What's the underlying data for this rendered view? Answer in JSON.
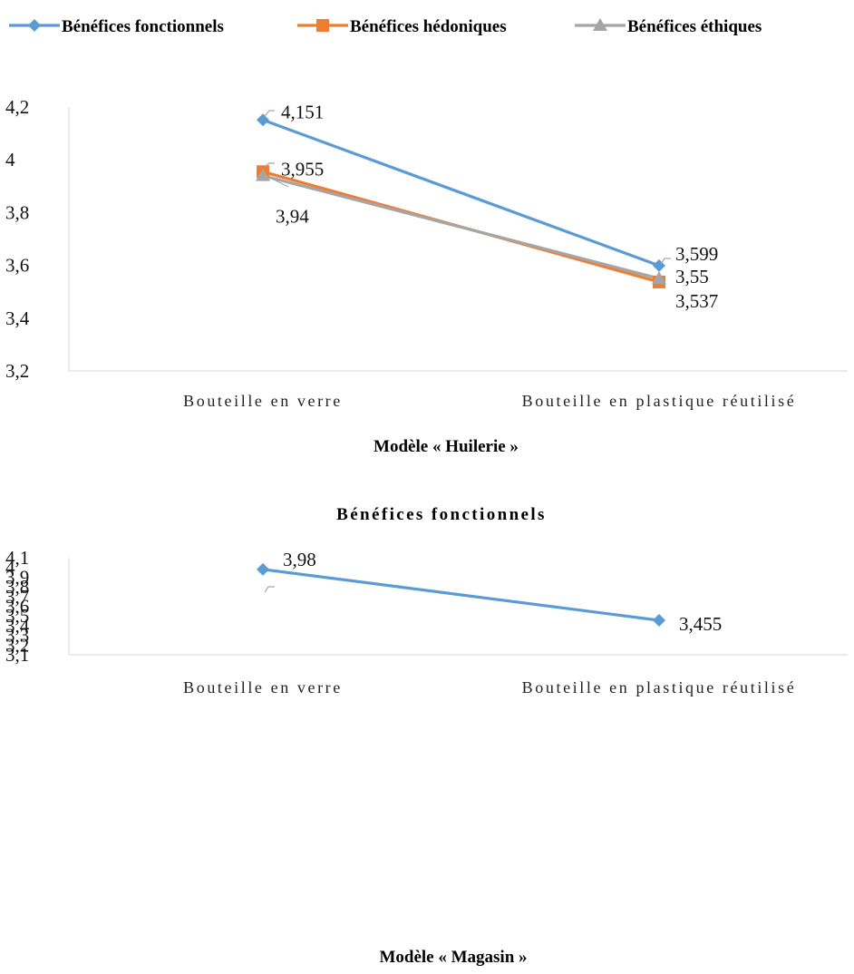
{
  "legend": {
    "items": [
      {
        "label": "Bénéfices fonctionnels",
        "color": "#5b9bd5",
        "marker": "diamond"
      },
      {
        "label": "Bénéfices hédoniques",
        "color": "#ed7d31",
        "marker": "square"
      },
      {
        "label": "Bénéfices éthiques",
        "color": "#a5a5a5",
        "marker": "triangle"
      }
    ]
  },
  "chart_data": [
    {
      "type": "line",
      "title": "",
      "caption": "Modèle « Huilerie »",
      "categories": [
        "Bouteille en verre",
        "Bouteille en plastique réutilisé"
      ],
      "ylim": [
        3.2,
        4.2
      ],
      "yticks": [
        "3,2",
        "3,4",
        "3,6",
        "3,8",
        "4",
        "4,2"
      ],
      "grid": false,
      "legend_position": "top",
      "series": [
        {
          "name": "Bénéfices fonctionnels",
          "values": [
            4.151,
            3.599
          ],
          "labels": [
            "4,151",
            "3,599"
          ],
          "color": "#5b9bd5",
          "marker": "diamond"
        },
        {
          "name": "Bénéfices hédoniques",
          "values": [
            3.955,
            3.537
          ],
          "labels": [
            "3,955",
            "3,537"
          ],
          "color": "#ed7d31",
          "marker": "square"
        },
        {
          "name": "Bénéfices éthiques",
          "values": [
            3.94,
            3.55
          ],
          "labels": [
            "3,94",
            "3,55"
          ],
          "color": "#a5a5a5",
          "marker": "triangle"
        }
      ]
    },
    {
      "type": "line",
      "title": "Bénéfices fonctionnels",
      "caption": "Modèle « Magasin »",
      "categories": [
        "Bouteille en verre",
        "Bouteille en plastique réutilisé"
      ],
      "ylim": [
        3.1,
        4.1
      ],
      "yticks": [
        "3,1",
        "3,2",
        "3,3",
        "3,4",
        "3,5",
        "3,6",
        "3,7",
        "3,8",
        "3,9",
        "4",
        "4,1"
      ],
      "grid": false,
      "legend_position": "none",
      "series": [
        {
          "name": "Bénéfices fonctionnels",
          "values": [
            3.98,
            3.455
          ],
          "labels": [
            "3,98",
            "3,455"
          ],
          "color": "#5b9bd5",
          "marker": "diamond"
        }
      ]
    }
  ]
}
